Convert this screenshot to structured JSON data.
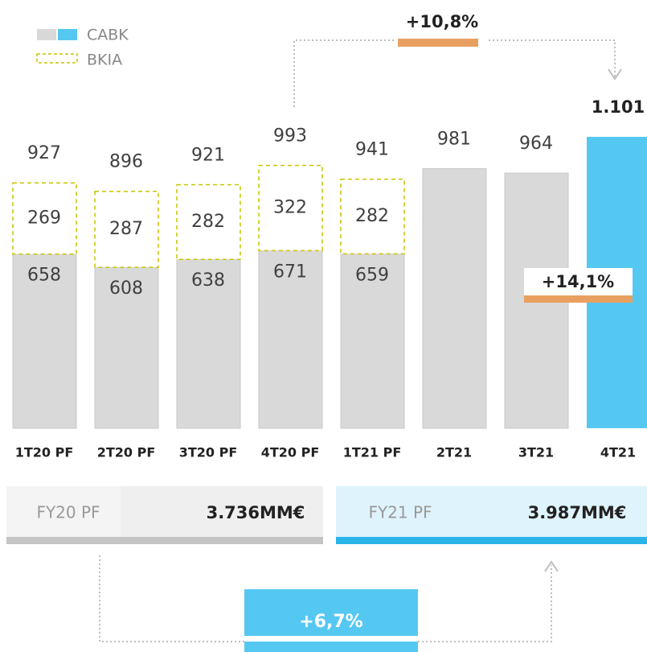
{
  "chart_data": {
    "type": "stacked-bar",
    "categories": [
      "1T20 PF",
      "2T20 PF",
      "3T20 PF",
      "4T20 PF",
      "1T21 PF",
      "2T21",
      "3T21",
      "4T21"
    ],
    "series": [
      {
        "name": "CABK",
        "color": "#d9d9d9",
        "highlight_color": "#55c8f2",
        "values": [
          658,
          608,
          638,
          671,
          659,
          981,
          964,
          1101
        ]
      },
      {
        "name": "BKIA",
        "color": "#c9c400",
        "values": [
          269,
          287,
          282,
          322,
          282,
          null,
          null,
          null
        ]
      }
    ],
    "highlight": "4T21",
    "totals": {
      "values": [
        927,
        896,
        921,
        993,
        941,
        981,
        964,
        1101
      ],
      "value_labels": [
        "927",
        "896",
        "921",
        "993",
        "941",
        "981",
        "964",
        "1.101"
      ]
    },
    "annotations": {
      "growth_quarter": "+10,8%",
      "growth_last": "+14,1%",
      "growth_year": "+6,7%"
    },
    "summary": [
      {
        "label": "FY20 PF",
        "value": "3.736MM€"
      },
      {
        "label": "FY21 PF",
        "value": "3.987MM€"
      }
    ]
  }
}
